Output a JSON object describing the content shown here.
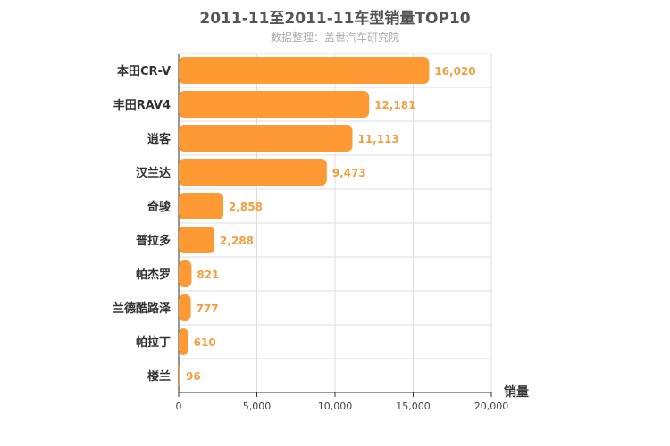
{
  "chart_data": {
    "type": "bar",
    "orientation": "horizontal",
    "title": "2011-11至2011-11车型销量TOP10",
    "subtitle": "数据整理：盖世汽车研究院",
    "xlabel": "销量",
    "ylabel": "",
    "categories": [
      "本田CR-V",
      "丰田RAV4",
      "逍客",
      "汉兰达",
      "奇骏",
      "普拉多",
      "帕杰罗",
      "兰德酷路泽",
      "帕拉丁",
      "楼兰"
    ],
    "values": [
      16020,
      12181,
      11113,
      9473,
      2858,
      2288,
      821,
      777,
      610,
      96
    ],
    "value_labels": [
      "16,020",
      "12,181",
      "11,113",
      "9,473",
      "2,858",
      "2,288",
      "821",
      "777",
      "610",
      "96"
    ],
    "xlim": [
      0,
      20000
    ],
    "xticks": [
      0,
      5000,
      10000,
      15000,
      20000
    ],
    "xtick_labels": [
      "0",
      "5,000",
      "10,000",
      "15,000",
      "20,000"
    ],
    "grid": true,
    "legend": "none",
    "bar_color": "#ff9933",
    "label_color": "#f0a040"
  }
}
